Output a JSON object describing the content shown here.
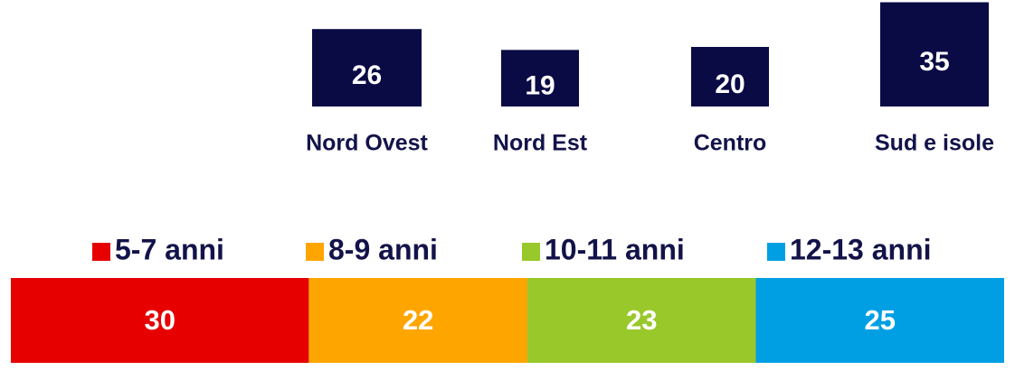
{
  "chart_data": [
    {
      "type": "bar",
      "categories": [
        "Nord Ovest",
        "Nord Est",
        "Centro",
        "Sud e isole"
      ],
      "values": [
        26,
        19,
        20,
        35
      ],
      "color": "#0a0a45",
      "label_color": "#13134a"
    },
    {
      "type": "stacked-bar",
      "series": [
        {
          "name": "5-7 anni",
          "color": "#e60000",
          "values": [
            30
          ]
        },
        {
          "name": "8-9 anni",
          "color": "#ffa500",
          "values": [
            22
          ]
        },
        {
          "name": "10-11 anni",
          "color": "#99c82a",
          "values": [
            23
          ]
        },
        {
          "name": "12-13 anni",
          "color": "#009fe3",
          "values": [
            25
          ]
        }
      ]
    }
  ]
}
